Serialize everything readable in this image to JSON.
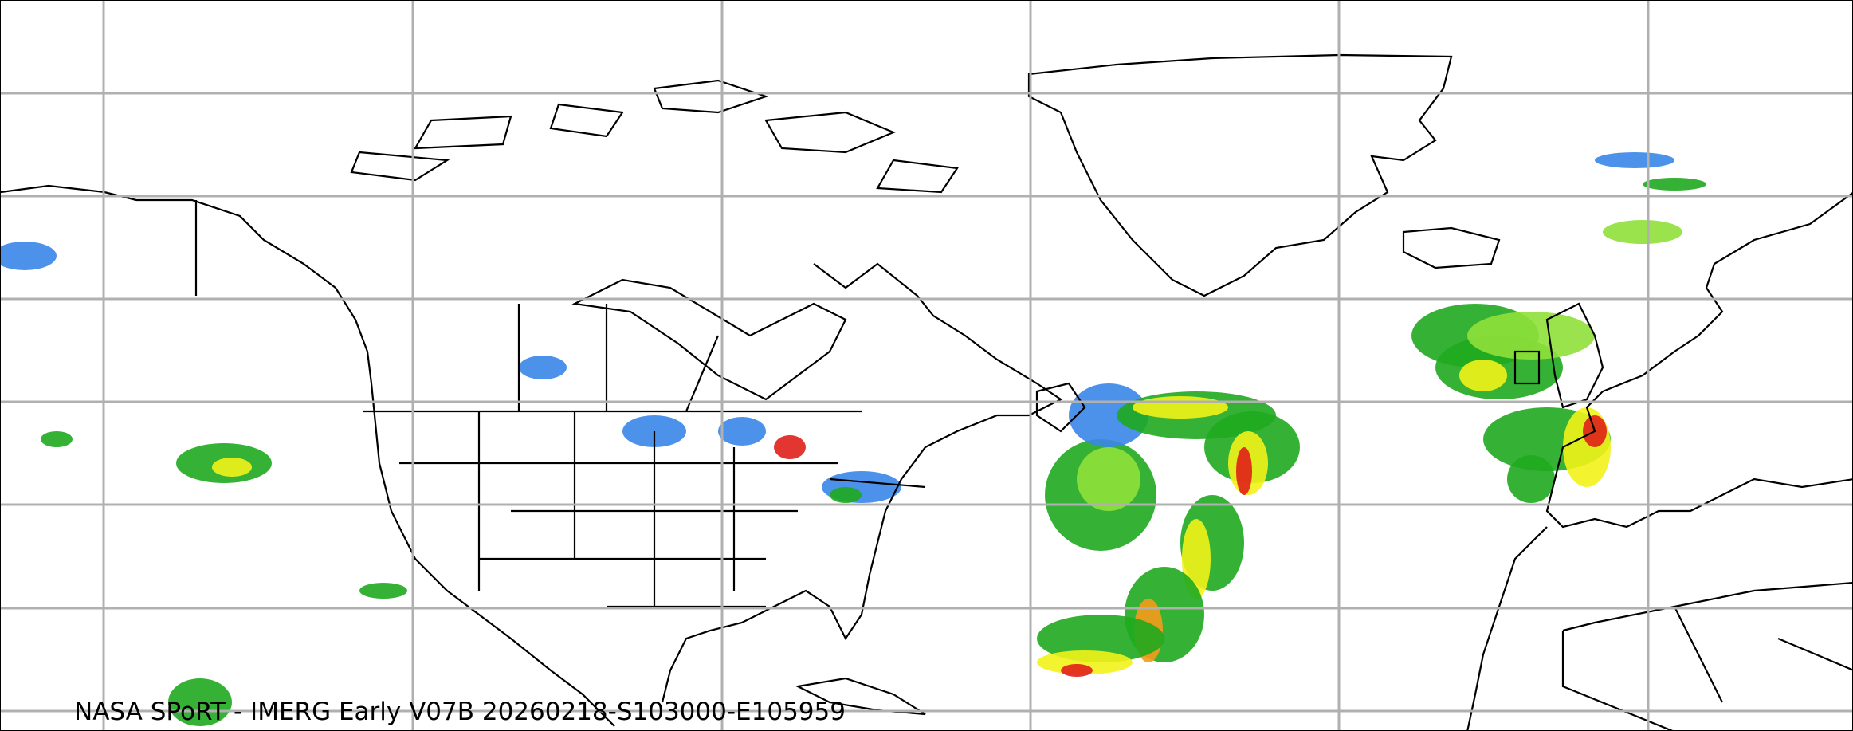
{
  "caption": "NASA SPoRT - IMERG Early V07B 20260218-S103000-E105959",
  "colors": {
    "gridline": "#b0b0b0",
    "coastline": "#000000",
    "precip_light": "#3a86e8",
    "precip_green_light": "#8fe03a",
    "precip_green": "#1faa1f",
    "precip_yellow": "#f2f21a",
    "precip_orange": "#f59a1a",
    "precip_red": "#e0201a"
  }
}
